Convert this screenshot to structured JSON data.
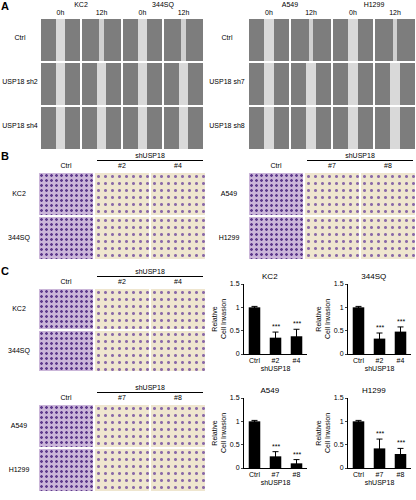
{
  "figure": {
    "A": {
      "label": "A",
      "groups": [
        {
          "cells": [
            "KC2",
            "344SQ"
          ],
          "times": [
            "0h",
            "12h"
          ],
          "rows": [
            "Ctrl",
            "USP18 sh2",
            "USP18 sh4"
          ]
        },
        {
          "cells": [
            "A549",
            "H1299"
          ],
          "times": [
            "0h",
            "12h"
          ],
          "rows": [
            "Ctrl",
            "USP18 sh7",
            "USP18 sh8"
          ]
        }
      ]
    },
    "B": {
      "label": "B",
      "groups": [
        {
          "control": "Ctrl",
          "treatment": "shUSP18",
          "clones": [
            "#2",
            "#4"
          ],
          "rows": [
            "KC2",
            "344SQ"
          ]
        },
        {
          "control": "Ctrl",
          "treatment": "shUSP18",
          "clones": [
            "#7",
            "#8"
          ],
          "rows": [
            "A549",
            "H1299"
          ]
        }
      ]
    },
    "C": {
      "label": "C",
      "groups": [
        {
          "control": "Ctrl",
          "treatment": "shUSP18",
          "clones": [
            "#2",
            "#4"
          ],
          "rows": [
            "KC2",
            "344SQ"
          ]
        },
        {
          "control": "Ctrl",
          "treatment": "shUSP18",
          "clones": [
            "#7",
            "#8"
          ],
          "rows": [
            "A549",
            "H1299"
          ]
        }
      ]
    }
  },
  "chart_data": [
    {
      "type": "bar",
      "title": "KC2",
      "y_label": "Relative Cell Invasion",
      "x_label": "shUSP18",
      "categories": [
        "Ctrl",
        "#2",
        "#4"
      ],
      "values": [
        1,
        0.35,
        0.38
      ],
      "errors": [
        0.02,
        0.12,
        0.15
      ],
      "significance": [
        null,
        "***",
        "***"
      ],
      "color": "#000000",
      "ylim": [
        0,
        1.5
      ],
      "yticks": [
        0,
        0.5,
        1,
        1.5
      ]
    },
    {
      "type": "bar",
      "title": "344SQ",
      "y_label": "Relative Cell Invasion",
      "x_label": "shUSP18",
      "categories": [
        "Ctrl",
        "#2",
        "#4"
      ],
      "values": [
        1,
        0.33,
        0.48
      ],
      "errors": [
        0.02,
        0.12,
        0.1
      ],
      "significance": [
        null,
        "***",
        "***"
      ],
      "color": "#000000",
      "ylim": [
        0,
        1.5
      ],
      "yticks": [
        0,
        0.5,
        1,
        1.5
      ]
    },
    {
      "type": "bar",
      "title": "A549",
      "y_label": "Relative Cell Invasion",
      "x_label": "shUSP18",
      "categories": [
        "Ctrl",
        "#7",
        "#8"
      ],
      "values": [
        1,
        0.25,
        0.1
      ],
      "errors": [
        0.02,
        0.1,
        0.08
      ],
      "significance": [
        null,
        "***",
        "***"
      ],
      "color": "#000000",
      "ylim": [
        0,
        1.5
      ],
      "yticks": [
        0,
        0.5,
        1,
        1.5
      ]
    },
    {
      "type": "bar",
      "title": "H1299",
      "y_label": "Relative Cell Invasion",
      "x_label": "shUSP18",
      "categories": [
        "Ctrl",
        "#7",
        "#8"
      ],
      "values": [
        1,
        0.42,
        0.3
      ],
      "errors": [
        0.02,
        0.2,
        0.12
      ],
      "significance": [
        null,
        "***",
        "***"
      ],
      "color": "#000000",
      "ylim": [
        0,
        1.5
      ],
      "yticks": [
        0,
        0.5,
        1,
        1.5
      ]
    }
  ]
}
